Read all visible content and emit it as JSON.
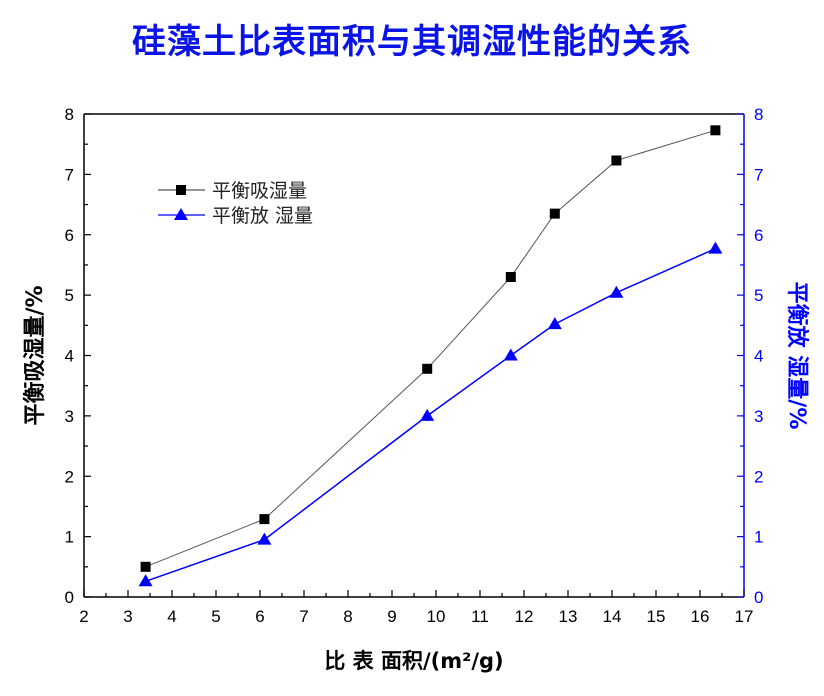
{
  "chart_data": {
    "type": "line",
    "title": "硅藻土比表面积与其调湿性能的关系",
    "xlabel": "比 表 面积/(m²/g)",
    "ylabel": "平衡吸湿量/%",
    "y2label": "平衡放 湿量/%",
    "xlim": [
      2,
      17
    ],
    "ylim": [
      0,
      8
    ],
    "y2lim": [
      0,
      8
    ],
    "xticks": [
      "2",
      "3",
      "4",
      "5",
      "6",
      "7",
      "8",
      "9",
      "10",
      "11",
      "12",
      "13",
      "14",
      "15",
      "16",
      "17"
    ],
    "yticks": [
      "0",
      "1",
      "2",
      "3",
      "4",
      "5",
      "6",
      "7",
      "8"
    ],
    "legend_position": "top-left",
    "grid": false,
    "series": [
      {
        "name": "平衡吸湿量",
        "marker": "square",
        "color": "#000000",
        "line_color": "#555555",
        "axis": "left",
        "x": [
          3.4,
          6.1,
          9.8,
          11.7,
          12.7,
          14.1,
          16.35
        ],
        "y": [
          0.5,
          1.29,
          3.78,
          5.3,
          6.35,
          7.23,
          7.73
        ]
      },
      {
        "name": "平衡放 湿量",
        "marker": "triangle",
        "color": "#0000ff",
        "line_color": "#0000ff",
        "axis": "right",
        "x": [
          3.4,
          6.1,
          9.8,
          11.7,
          12.7,
          14.1,
          16.35
        ],
        "y": [
          0.26,
          0.95,
          3.0,
          4.0,
          4.52,
          5.04,
          5.77
        ]
      }
    ]
  }
}
